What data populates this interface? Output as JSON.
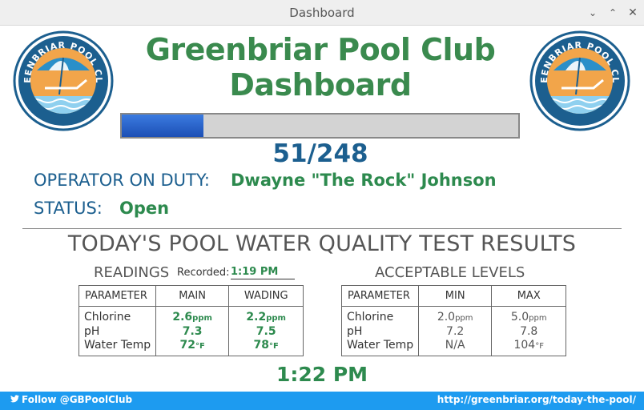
{
  "window": {
    "title": "Dashboard",
    "buttons": {
      "collapse": "⌄",
      "maximize": "⌃",
      "close": "✕"
    }
  },
  "header": {
    "title_line1": "Greenbriar Pool Club",
    "title_line2": "Dashboard",
    "logo_text": "GREENBRIAR POOL CLUB"
  },
  "capacity": {
    "current": 51,
    "max": 248,
    "label": "51/248",
    "fraction": 0.2056
  },
  "operator": {
    "label": "OPERATOR ON DUTY:",
    "name": "Dwayne \"The Rock\" Johnson"
  },
  "status": {
    "label": "STATUS:",
    "value": "Open"
  },
  "results": {
    "title": "TODAY'S POOL WATER QUALITY TEST RESULTS",
    "readings": {
      "title": "READINGS",
      "recorded_label": "Recorded:",
      "recorded_time": "1:19 PM",
      "headers": [
        "PARAMETER",
        "MAIN",
        "WADING"
      ],
      "rows": [
        {
          "name": "Chlorine",
          "main": "2.6",
          "main_unit": "ppm",
          "wading": "2.2",
          "wading_unit": "ppm"
        },
        {
          "name": "pH",
          "main": "7.3",
          "main_unit": "",
          "wading": "7.5",
          "wading_unit": ""
        },
        {
          "name": "Water Temp",
          "main": "72",
          "main_unit": "°F",
          "wading": "78",
          "wading_unit": "°F"
        }
      ]
    },
    "levels": {
      "title": "ACCEPTABLE LEVELS",
      "headers": [
        "PARAMETER",
        "MIN",
        "MAX"
      ],
      "rows": [
        {
          "name": "Chlorine",
          "min": "2.0",
          "min_unit": "ppm",
          "max": "5.0",
          "max_unit": "ppm"
        },
        {
          "name": "pH",
          "min": "7.2",
          "min_unit": "",
          "max": "7.8",
          "max_unit": ""
        },
        {
          "name": "Water Temp",
          "min": "N/A",
          "min_unit": "",
          "max": "104",
          "max_unit": "°F"
        }
      ]
    }
  },
  "clock": "1:22 PM",
  "footer": {
    "twitter": "Follow @GBPoolClub",
    "url": "http://greenbriar.org/today-the-pool/"
  },
  "colors": {
    "brand_green": "#3a8a4e",
    "value_green": "#2d8a4e",
    "label_blue": "#1c5f8f",
    "footer_blue": "#1d9bf0",
    "progress_blue": "#1c4fb5"
  }
}
